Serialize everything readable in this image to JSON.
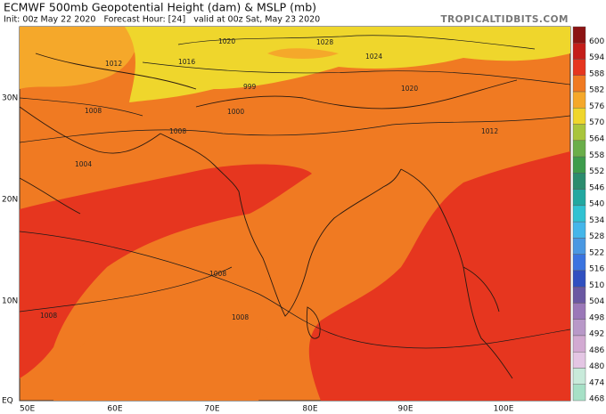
{
  "header": {
    "title": "ECMWF 500mb Geopotential Height (dam) & MSLP (mb)",
    "subtitle": "Init: 00z May 22 2020   Forecast Hour: [24]   valid at 00z Sat, May 23 2020",
    "source": "TROPICALTIDBITS.COM"
  },
  "axes": {
    "latitudes": [
      "30N",
      "20N",
      "10N",
      "EQ"
    ],
    "longitudes": [
      "50E",
      "60E",
      "70E",
      "80E",
      "90E",
      "100E"
    ]
  },
  "legend": [
    {
      "label": "600",
      "color": "#8c1414"
    },
    {
      "label": "594",
      "color": "#c41e1a"
    },
    {
      "label": "588",
      "color": "#e6361f"
    },
    {
      "label": "582",
      "color": "#f07a22"
    },
    {
      "label": "576",
      "color": "#f5a82a"
    },
    {
      "label": "570",
      "color": "#efd62c"
    },
    {
      "label": "564",
      "color": "#a9c53c"
    },
    {
      "label": "558",
      "color": "#6aae4a"
    },
    {
      "label": "552",
      "color": "#3d9c4c"
    },
    {
      "label": "546",
      "color": "#2b8c6e"
    },
    {
      "label": "540",
      "color": "#22a8a0"
    },
    {
      "label": "534",
      "color": "#30c2d2"
    },
    {
      "label": "528",
      "color": "#44b6ea"
    },
    {
      "label": "522",
      "color": "#4a98e2"
    },
    {
      "label": "516",
      "color": "#3a74e0"
    },
    {
      "label": "510",
      "color": "#3050c0"
    },
    {
      "label": "504",
      "color": "#6a58a2"
    },
    {
      "label": "498",
      "color": "#9a78b8"
    },
    {
      "label": "492",
      "color": "#b898c8"
    },
    {
      "label": "486",
      "color": "#d2aad2"
    },
    {
      "label": "480",
      "color": "#e4c6e4"
    },
    {
      "label": "474",
      "color": "#c8eada"
    },
    {
      "label": "468",
      "color": "#a6e0c6"
    }
  ],
  "isobar_labels": [
    "1028",
    "1024",
    "1020",
    "1016",
    "1012",
    "1008",
    "1008",
    "1004",
    "999",
    "1000",
    "1008",
    "1008",
    "1008",
    "1012",
    "1020"
  ]
}
